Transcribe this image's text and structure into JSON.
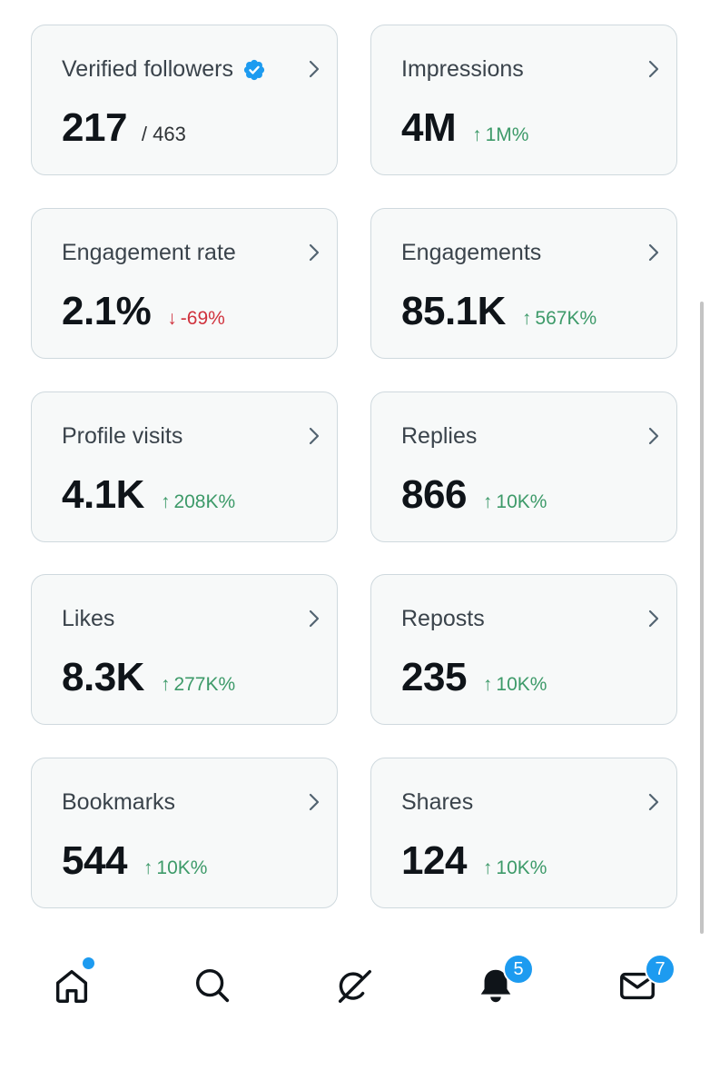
{
  "colors": {
    "positive": "#3d9a69",
    "negative": "#d0323d",
    "accent": "#1d9bf0"
  },
  "metrics": [
    {
      "title": "Verified followers",
      "value": "217",
      "total": "/ 463",
      "verified": true
    },
    {
      "title": "Impressions",
      "value": "4M",
      "arrow": "↑",
      "delta": "1M%",
      "direction": "up"
    },
    {
      "title": "Engagement rate",
      "value": "2.1%",
      "arrow": "↓",
      "delta": "-69%",
      "direction": "down"
    },
    {
      "title": "Engagements",
      "value": "85.1K",
      "arrow": "↑",
      "delta": "567K%",
      "direction": "up"
    },
    {
      "title": "Profile visits",
      "value": "4.1K",
      "arrow": "↑",
      "delta": "208K%",
      "direction": "up"
    },
    {
      "title": "Replies",
      "value": "866",
      "arrow": "↑",
      "delta": "10K%",
      "direction": "up"
    },
    {
      "title": "Likes",
      "value": "8.3K",
      "arrow": "↑",
      "delta": "277K%",
      "direction": "up"
    },
    {
      "title": "Reposts",
      "value": "235",
      "arrow": "↑",
      "delta": "10K%",
      "direction": "up"
    },
    {
      "title": "Bookmarks",
      "value": "544",
      "arrow": "↑",
      "delta": "10K%",
      "direction": "up"
    },
    {
      "title": "Shares",
      "value": "124",
      "arrow": "↑",
      "delta": "10K%",
      "direction": "up"
    }
  ],
  "nav": {
    "items": [
      {
        "icon": "home-icon",
        "has_unread_dot": true
      },
      {
        "icon": "search-icon"
      },
      {
        "icon": "grok-icon"
      },
      {
        "icon": "bell-icon",
        "badge": "5"
      },
      {
        "icon": "mail-icon",
        "badge": "7"
      }
    ]
  }
}
